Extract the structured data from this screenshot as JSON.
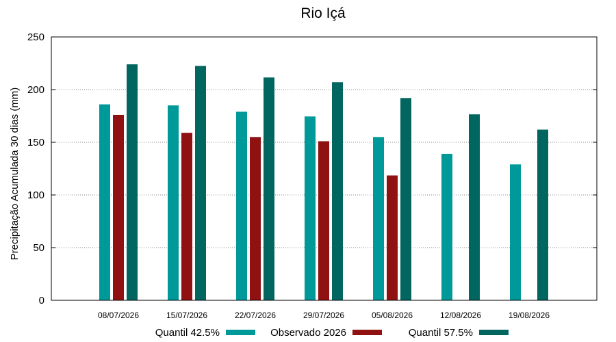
{
  "chart_data": {
    "type": "bar",
    "title": "Rio Içá",
    "xlabel": "",
    "ylabel": "Precipitação Acumulada 30 dias (mm)",
    "ylim": [
      0,
      250
    ],
    "yticks": [
      0,
      50,
      100,
      150,
      200,
      250
    ],
    "grid": true,
    "legend_position": "bottom",
    "categories": [
      "08/07/2026",
      "15/07/2026",
      "22/07/2026",
      "29/07/2026",
      "05/08/2026",
      "12/08/2026",
      "19/08/2026"
    ],
    "series": [
      {
        "name": "Quantil 42.5%",
        "color": "#00999a",
        "values": [
          186,
          185,
          179,
          174.5,
          155,
          139,
          129
        ]
      },
      {
        "name": "Observado 2026",
        "color": "#8f1111",
        "values": [
          176,
          159,
          155,
          151,
          118.5,
          null,
          null
        ]
      },
      {
        "name": "Quantil 57.5%",
        "color": "#00665f",
        "values": [
          224,
          222.5,
          211.5,
          207,
          192,
          176.5,
          162
        ]
      }
    ]
  }
}
